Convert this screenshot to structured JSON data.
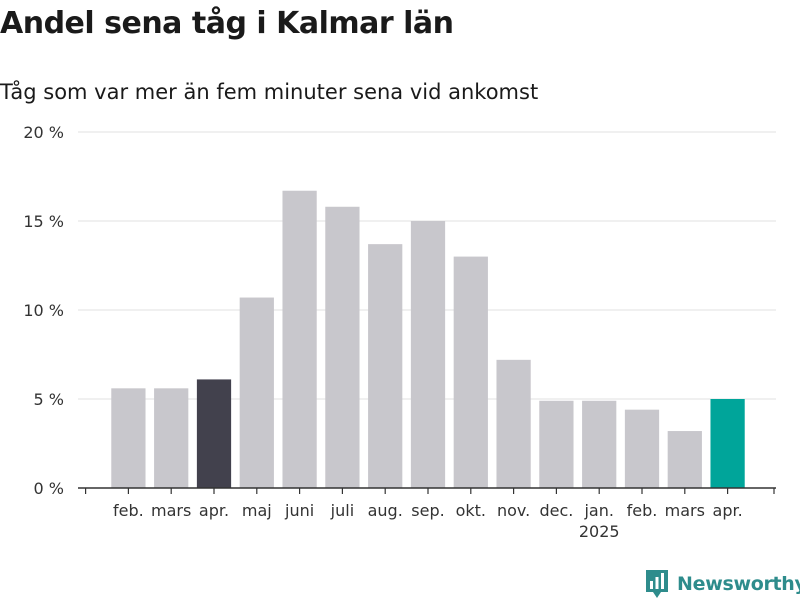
{
  "chart_data": {
    "type": "bar",
    "title": "Andel sena tåg i Kalmar län",
    "subtitle": "Tåg som var mer än fem minuter sena vid ankomst",
    "categories": [
      "feb.",
      "mars",
      "apr.",
      "maj",
      "juni",
      "juli",
      "aug.",
      "sep.",
      "okt.",
      "nov.",
      "dec.",
      "jan.",
      "feb.",
      "mars",
      "apr."
    ],
    "year_labels": [
      {
        "category_index": 11,
        "label": "2025"
      }
    ],
    "values": [
      5.6,
      5.6,
      6.1,
      10.7,
      16.7,
      15.8,
      13.7,
      15.0,
      13.0,
      7.2,
      4.9,
      4.9,
      4.4,
      3.2,
      5.0
    ],
    "highlight": {
      "dark": 2,
      "accent": 14
    },
    "colors": {
      "default": "#c8c7cc",
      "dark": "#42414d",
      "accent": "#00a59a",
      "grid": "#e0e0e0",
      "axis": "#333333"
    },
    "yticks": [
      {
        "value": 0,
        "label": "0 %"
      },
      {
        "value": 5,
        "label": "5 %"
      },
      {
        "value": 10,
        "label": "10 %"
      },
      {
        "value": 15,
        "label": "15 %"
      },
      {
        "value": 20,
        "label": "20 %"
      }
    ],
    "ylim": [
      0,
      20
    ],
    "grid": true,
    "xlabel": "",
    "ylabel": ""
  },
  "brand": {
    "name": "Newsworthy",
    "icon": "newsworthy-logo-icon",
    "color": "#2e8c8c"
  }
}
